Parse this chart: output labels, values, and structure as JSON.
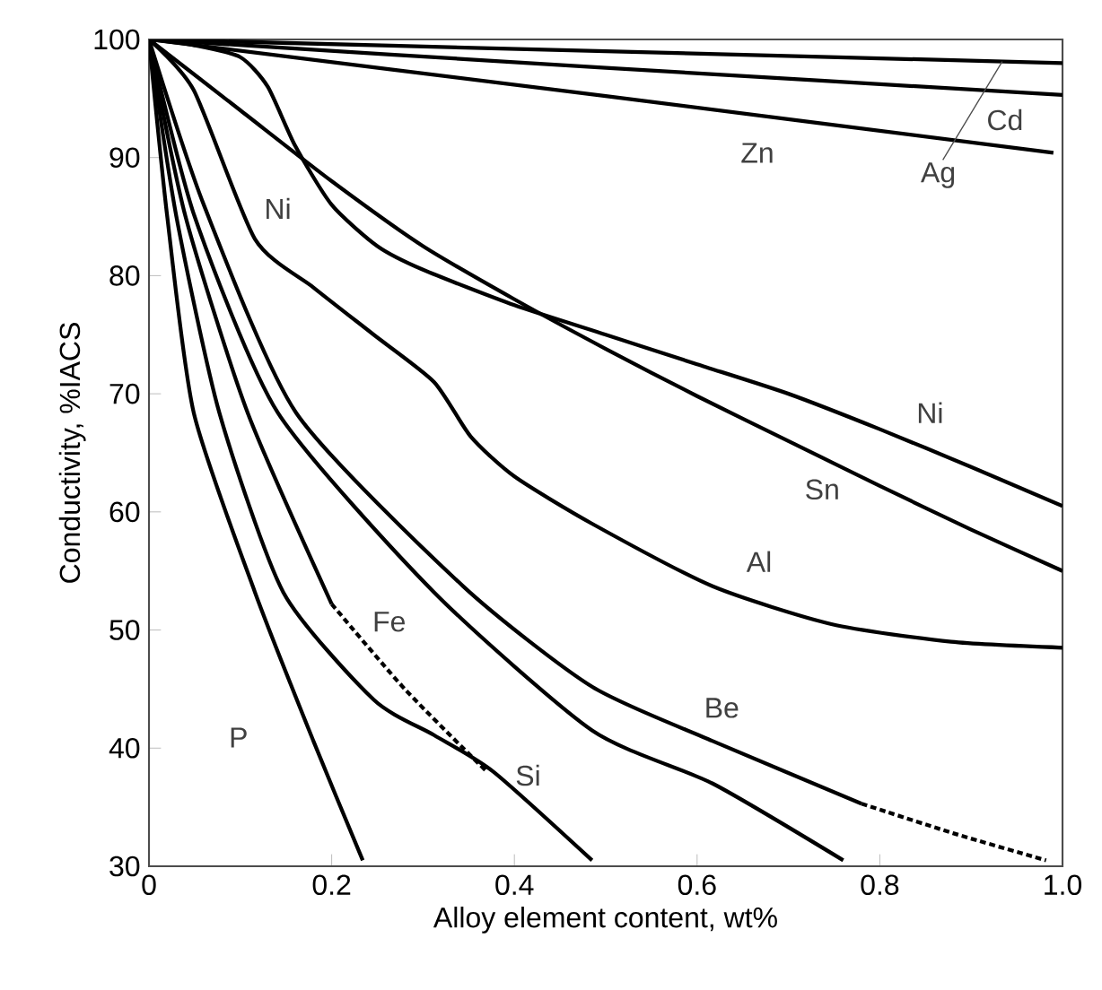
{
  "chart_data": {
    "type": "line",
    "xlabel": "Alloy element content, wt%",
    "ylabel": "Conductivity, %IACS",
    "xlim": [
      0,
      1
    ],
    "ylim": [
      30,
      100
    ],
    "xticks": [
      0,
      0.2,
      0.4,
      0.6,
      0.8,
      {
        "value": 1,
        "label": "1.0"
      }
    ],
    "yticks": [
      30,
      40,
      50,
      60,
      70,
      80,
      90,
      100
    ],
    "grid": false,
    "marker": "none",
    "series": [
      {
        "name": "Ag",
        "color": "#000000",
        "x": [
          0,
          0.5,
          1.0
        ],
        "values": [
          100,
          99,
          98
        ]
      },
      {
        "name": "Cd",
        "color": "#000000",
        "x": [
          0,
          0.5,
          1.0
        ],
        "values": [
          100,
          97.6,
          95.3
        ]
      },
      {
        "name": "Zn",
        "color": "#000000",
        "x": [
          0,
          0.5,
          0.99
        ],
        "values": [
          100,
          95.2,
          90.4
        ]
      },
      {
        "name": "Ni",
        "color": "#000000",
        "x": [
          0,
          0.05,
          0.1,
          0.13,
          0.16,
          0.2,
          0.25,
          0.3,
          0.4,
          0.5,
          0.6,
          0.7,
          0.8,
          0.9,
          1.0
        ],
        "values": [
          100,
          99.5,
          98.5,
          96,
          91,
          86,
          82.5,
          80.5,
          77.5,
          75,
          72.5,
          70,
          67,
          63.8,
          60.5
        ]
      },
      {
        "name": "Sn",
        "color": "#000000",
        "x": [
          0,
          0.1,
          0.2,
          0.3,
          0.4,
          0.5,
          0.6,
          0.7,
          0.8,
          0.9,
          1.0
        ],
        "values": [
          100,
          94,
          88,
          82.5,
          78,
          73.8,
          69.8,
          66,
          62.2,
          58.5,
          55
        ]
      },
      {
        "name": "Al",
        "color": "#000000",
        "x": [
          0,
          0.049,
          0.116,
          0.18,
          0.246,
          0.312,
          0.352,
          0.4,
          0.485,
          0.617,
          0.747,
          0.878,
          1.0
        ],
        "values": [
          100,
          95.7,
          83.1,
          79,
          75,
          71,
          66.4,
          63,
          59,
          53.7,
          50.5,
          49,
          48.5
        ]
      },
      {
        "name": "Be",
        "color": "#000000",
        "x": [
          0,
          0.06,
          0.161,
          0.344,
          0.485,
          0.617,
          0.78
        ],
        "values": [
          100,
          86,
          68.4,
          53.7,
          45.2,
          40.6,
          35.3
        ]
      },
      {
        "color": "#000000",
        "line_style": "dashed",
        "x": [
          0.78,
          0.88,
          0.982
        ],
        "values": [
          35.3,
          32.8,
          30.5
        ]
      },
      {
        "color": "#000000",
        "x": [
          0,
          0.05,
          0.141,
          0.312,
          0.485,
          0.617,
          0.76
        ],
        "values": [
          100,
          85,
          68.4,
          53.2,
          41.5,
          37,
          30.5
        ]
      },
      {
        "name": "Fe",
        "color": "#000000",
        "x": [
          0,
          0.04,
          0.108,
          0.2
        ],
        "values": [
          100,
          85,
          68.4,
          52.2
        ]
      },
      {
        "color": "#000000",
        "line_style": "dashed",
        "x": [
          0.2,
          0.28,
          0.37
        ],
        "values": [
          52.2,
          45,
          38
        ]
      },
      {
        "name": "Si",
        "color": "#000000",
        "x": [
          0,
          0.03,
          0.077,
          0.147,
          0.246,
          0.312,
          0.377,
          0.485
        ],
        "values": [
          100,
          85,
          68.4,
          53.2,
          44.1,
          41.1,
          38,
          30.5
        ]
      },
      {
        "name": "P",
        "color": "#000000",
        "x": [
          0,
          0.02,
          0.049,
          0.116,
          0.18,
          0.234
        ],
        "values": [
          100,
          85,
          68.4,
          53.2,
          40.6,
          30.5
        ]
      }
    ],
    "annotations": [
      "Ni"
    ]
  }
}
